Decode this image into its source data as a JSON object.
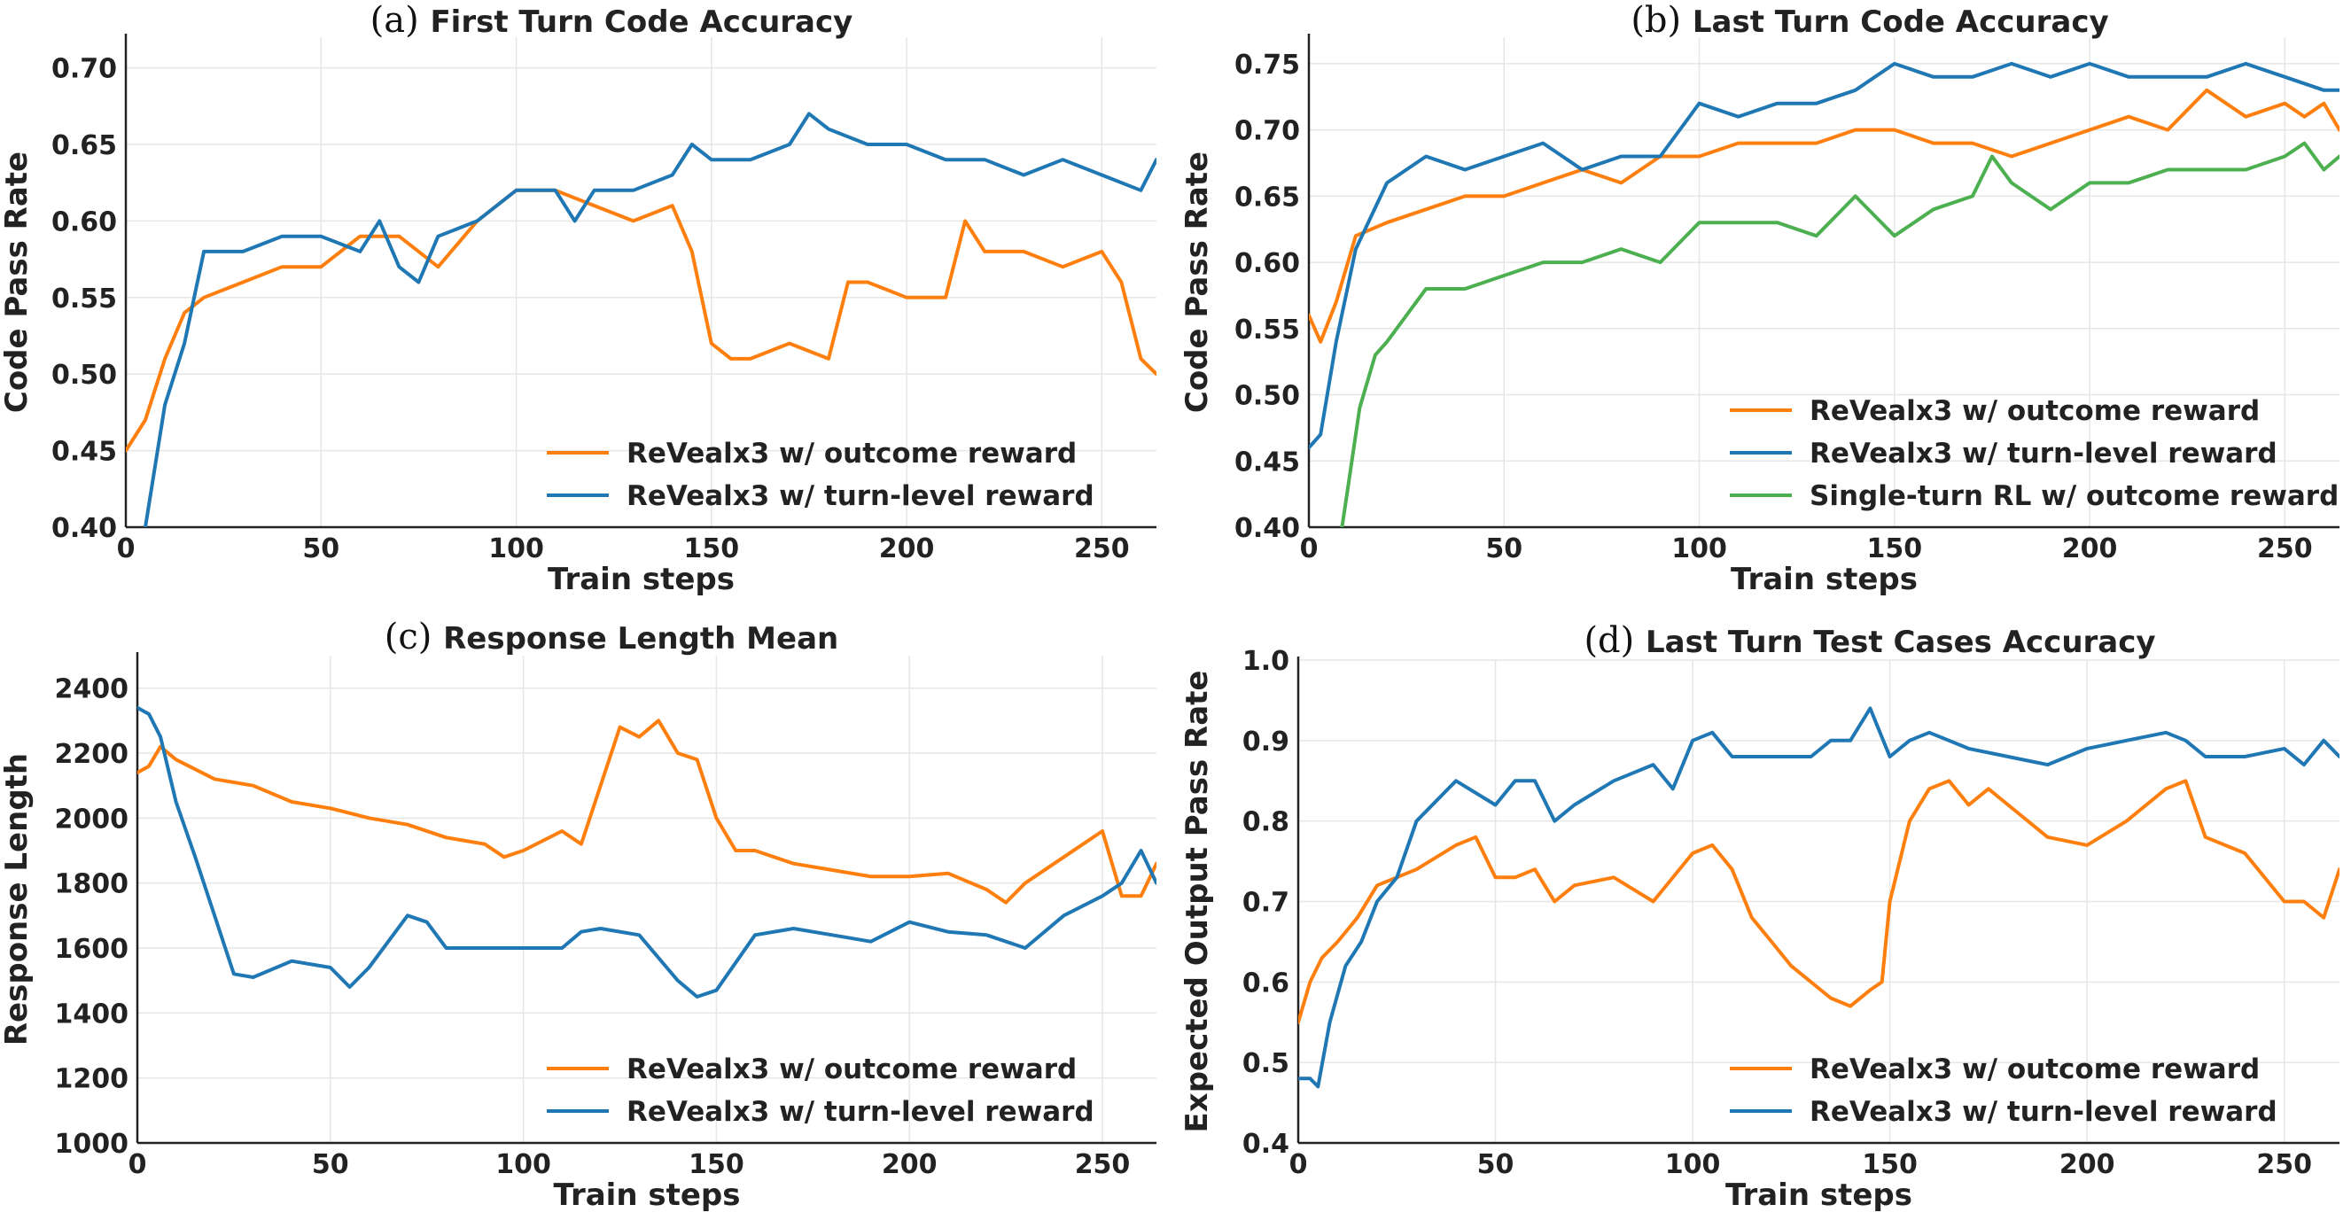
{
  "figure": {
    "colors": {
      "orange": "#ff7f0e",
      "blue": "#1f77b4",
      "green": "#4caf50"
    }
  },
  "chart_data": [
    {
      "panel_letter": "(a)",
      "title": "First Turn Code Accuracy",
      "type": "line",
      "xlabel": "Train steps",
      "ylabel": "Code Pass Rate",
      "xlim": [
        0,
        264
      ],
      "ylim": [
        0.4,
        0.72
      ],
      "xticks": [
        0,
        50,
        100,
        150,
        200,
        250
      ],
      "yticks": [
        0.4,
        0.45,
        0.5,
        0.55,
        0.6,
        0.65,
        0.7
      ],
      "ytick_labels": [
        "0.40",
        "0.45",
        "0.50",
        "0.55",
        "0.60",
        "0.65",
        "0.70"
      ],
      "grid": true,
      "legend_position": "lower-right",
      "series": [
        {
          "name": "ReVealx3 w/ outcome reward",
          "color": "#ff7f0e",
          "x": [
            0,
            5,
            10,
            15,
            20,
            30,
            40,
            50,
            60,
            70,
            80,
            90,
            100,
            110,
            120,
            130,
            140,
            145,
            150,
            155,
            160,
            170,
            180,
            185,
            190,
            200,
            210,
            215,
            220,
            230,
            240,
            250,
            255,
            260,
            264
          ],
          "y": [
            0.45,
            0.47,
            0.51,
            0.54,
            0.55,
            0.56,
            0.57,
            0.57,
            0.59,
            0.59,
            0.57,
            0.6,
            0.62,
            0.62,
            0.61,
            0.6,
            0.61,
            0.58,
            0.52,
            0.51,
            0.51,
            0.52,
            0.51,
            0.56,
            0.56,
            0.55,
            0.55,
            0.6,
            0.58,
            0.58,
            0.57,
            0.58,
            0.56,
            0.51,
            0.5
          ]
        },
        {
          "name": "ReVealx3 w/ turn-level reward",
          "color": "#1f77b4",
          "x": [
            0,
            5,
            10,
            15,
            20,
            30,
            40,
            50,
            60,
            65,
            70,
            75,
            80,
            90,
            100,
            110,
            115,
            120,
            130,
            140,
            145,
            150,
            160,
            170,
            175,
            180,
            190,
            200,
            210,
            220,
            230,
            240,
            250,
            260,
            264
          ],
          "y": [
            0.37,
            0.4,
            0.48,
            0.52,
            0.58,
            0.58,
            0.59,
            0.59,
            0.58,
            0.6,
            0.57,
            0.56,
            0.59,
            0.6,
            0.62,
            0.62,
            0.6,
            0.62,
            0.62,
            0.63,
            0.65,
            0.64,
            0.64,
            0.65,
            0.67,
            0.66,
            0.65,
            0.65,
            0.64,
            0.64,
            0.63,
            0.64,
            0.63,
            0.62,
            0.64
          ]
        }
      ]
    },
    {
      "panel_letter": "(b)",
      "title": "Last Turn Code Accuracy",
      "type": "line",
      "xlabel": "Train steps",
      "ylabel": "Code Pass Rate",
      "xlim": [
        0,
        264
      ],
      "ylim": [
        0.4,
        0.77
      ],
      "xticks": [
        0,
        50,
        100,
        150,
        200,
        250
      ],
      "yticks": [
        0.4,
        0.45,
        0.5,
        0.55,
        0.6,
        0.65,
        0.7,
        0.75
      ],
      "ytick_labels": [
        "0.40",
        "0.45",
        "0.50",
        "0.55",
        "0.60",
        "0.65",
        "0.70",
        "0.75"
      ],
      "grid": true,
      "legend_position": "lower-right",
      "series": [
        {
          "name": "ReVealx3 w/ outcome reward",
          "color": "#ff7f0e",
          "x": [
            0,
            3,
            7,
            12,
            20,
            30,
            40,
            50,
            60,
            70,
            80,
            90,
            100,
            110,
            120,
            130,
            140,
            150,
            160,
            170,
            180,
            190,
            200,
            210,
            220,
            230,
            240,
            250,
            255,
            260,
            264
          ],
          "y": [
            0.56,
            0.54,
            0.57,
            0.62,
            0.63,
            0.64,
            0.65,
            0.65,
            0.66,
            0.67,
            0.66,
            0.68,
            0.68,
            0.69,
            0.69,
            0.69,
            0.7,
            0.7,
            0.69,
            0.69,
            0.68,
            0.69,
            0.7,
            0.71,
            0.7,
            0.73,
            0.71,
            0.72,
            0.71,
            0.72,
            0.7
          ]
        },
        {
          "name": "ReVealx3 w/ turn-level reward",
          "color": "#1f77b4",
          "x": [
            0,
            3,
            7,
            12,
            20,
            30,
            40,
            50,
            60,
            70,
            80,
            90,
            100,
            110,
            120,
            130,
            140,
            150,
            160,
            170,
            180,
            190,
            200,
            210,
            220,
            230,
            240,
            250,
            260,
            264
          ],
          "y": [
            0.46,
            0.47,
            0.54,
            0.61,
            0.66,
            0.68,
            0.67,
            0.68,
            0.69,
            0.67,
            0.68,
            0.68,
            0.72,
            0.71,
            0.72,
            0.72,
            0.73,
            0.75,
            0.74,
            0.74,
            0.75,
            0.74,
            0.75,
            0.74,
            0.74,
            0.74,
            0.75,
            0.74,
            0.73,
            0.73
          ]
        },
        {
          "name": "Single-turn RL w/ outcome reward",
          "color": "#4caf50",
          "x": [
            8,
            10,
            13,
            17,
            20,
            25,
            30,
            40,
            50,
            60,
            70,
            80,
            90,
            100,
            110,
            120,
            130,
            140,
            150,
            160,
            170,
            175,
            180,
            185,
            190,
            200,
            210,
            220,
            230,
            240,
            250,
            255,
            260,
            264
          ],
          "y": [
            0.39,
            0.43,
            0.49,
            0.53,
            0.54,
            0.56,
            0.58,
            0.58,
            0.59,
            0.6,
            0.6,
            0.61,
            0.6,
            0.63,
            0.63,
            0.63,
            0.62,
            0.65,
            0.62,
            0.64,
            0.65,
            0.68,
            0.66,
            0.65,
            0.64,
            0.66,
            0.66,
            0.67,
            0.67,
            0.67,
            0.68,
            0.69,
            0.67,
            0.68
          ]
        }
      ]
    },
    {
      "panel_letter": "(c)",
      "title": "Response Length Mean",
      "type": "line",
      "xlabel": "Train steps",
      "ylabel": "Response Length",
      "xlim": [
        0,
        264
      ],
      "ylim": [
        1000,
        2500
      ],
      "xticks": [
        0,
        50,
        100,
        150,
        200,
        250
      ],
      "yticks": [
        1000,
        1200,
        1400,
        1600,
        1800,
        2000,
        2200,
        2400
      ],
      "ytick_labels": [
        "1000",
        "1200",
        "1400",
        "1600",
        "1800",
        "2000",
        "2200",
        "2400"
      ],
      "grid": true,
      "legend_position": "lower-right",
      "series": [
        {
          "name": "ReVealx3 w/ outcome reward",
          "color": "#ff7f0e",
          "x": [
            0,
            3,
            6,
            10,
            20,
            30,
            40,
            50,
            60,
            70,
            80,
            90,
            95,
            100,
            110,
            115,
            120,
            125,
            130,
            135,
            140,
            145,
            150,
            155,
            160,
            170,
            180,
            190,
            200,
            210,
            220,
            225,
            230,
            240,
            245,
            250,
            255,
            260,
            264
          ],
          "y": [
            2140,
            2160,
            2220,
            2180,
            2120,
            2100,
            2050,
            2030,
            2000,
            1980,
            1940,
            1920,
            1880,
            1900,
            1960,
            1920,
            2100,
            2280,
            2250,
            2300,
            2200,
            2180,
            2000,
            1900,
            1900,
            1860,
            1840,
            1820,
            1820,
            1830,
            1780,
            1740,
            1800,
            1880,
            1920,
            1960,
            1760,
            1760,
            1860
          ]
        },
        {
          "name": "ReVealx3 w/ turn-level reward",
          "color": "#1f77b4",
          "x": [
            0,
            3,
            6,
            10,
            15,
            20,
            25,
            30,
            40,
            50,
            55,
            60,
            70,
            75,
            80,
            90,
            100,
            110,
            115,
            120,
            130,
            140,
            145,
            150,
            160,
            170,
            180,
            190,
            200,
            210,
            220,
            230,
            240,
            250,
            255,
            260,
            264
          ],
          "y": [
            2340,
            2320,
            2250,
            2050,
            1880,
            1700,
            1520,
            1510,
            1560,
            1540,
            1480,
            1540,
            1700,
            1680,
            1600,
            1600,
            1600,
            1600,
            1650,
            1660,
            1640,
            1500,
            1450,
            1470,
            1640,
            1660,
            1640,
            1620,
            1680,
            1650,
            1640,
            1600,
            1700,
            1760,
            1800,
            1900,
            1800
          ]
        }
      ]
    },
    {
      "panel_letter": "(d)",
      "title": "Last Turn Test Cases Accuracy",
      "type": "line",
      "xlabel": "Train steps",
      "ylabel": "Expected Output Pass Rate",
      "xlim": [
        0,
        264
      ],
      "ylim": [
        0.4,
        1.0
      ],
      "xticks": [
        0,
        50,
        100,
        150,
        200,
        250
      ],
      "yticks": [
        0.4,
        0.5,
        0.6,
        0.7,
        0.8,
        0.9,
        1.0
      ],
      "ytick_labels": [
        "0.4",
        "0.5",
        "0.6",
        "0.7",
        "0.8",
        "0.9",
        "1.0"
      ],
      "grid": true,
      "legend_position": "lower-right",
      "series": [
        {
          "name": "ReVealx3 w/ outcome reward",
          "color": "#ff7f0e",
          "x": [
            0,
            3,
            6,
            10,
            15,
            20,
            30,
            40,
            45,
            50,
            55,
            60,
            65,
            70,
            80,
            90,
            100,
            105,
            110,
            115,
            120,
            125,
            130,
            135,
            140,
            145,
            148,
            150,
            155,
            160,
            165,
            170,
            175,
            180,
            190,
            200,
            210,
            220,
            225,
            230,
            240,
            250,
            255,
            260,
            264
          ],
          "y": [
            0.55,
            0.6,
            0.63,
            0.65,
            0.68,
            0.72,
            0.74,
            0.77,
            0.78,
            0.73,
            0.73,
            0.74,
            0.7,
            0.72,
            0.73,
            0.7,
            0.76,
            0.77,
            0.74,
            0.68,
            0.65,
            0.62,
            0.6,
            0.58,
            0.57,
            0.59,
            0.6,
            0.7,
            0.8,
            0.84,
            0.85,
            0.82,
            0.84,
            0.82,
            0.78,
            0.77,
            0.8,
            0.84,
            0.85,
            0.78,
            0.76,
            0.7,
            0.7,
            0.68,
            0.74
          ]
        },
        {
          "name": "ReVealx3 w/ turn-level reward",
          "color": "#1f77b4",
          "x": [
            0,
            3,
            5,
            8,
            12,
            16,
            20,
            25,
            30,
            40,
            50,
            55,
            60,
            65,
            70,
            80,
            90,
            95,
            100,
            105,
            110,
            120,
            130,
            135,
            140,
            145,
            150,
            155,
            160,
            170,
            180,
            190,
            200,
            210,
            220,
            225,
            230,
            240,
            250,
            255,
            260,
            264
          ],
          "y": [
            0.48,
            0.48,
            0.47,
            0.55,
            0.62,
            0.65,
            0.7,
            0.73,
            0.8,
            0.85,
            0.82,
            0.85,
            0.85,
            0.8,
            0.82,
            0.85,
            0.87,
            0.84,
            0.9,
            0.91,
            0.88,
            0.88,
            0.88,
            0.9,
            0.9,
            0.94,
            0.88,
            0.9,
            0.91,
            0.89,
            0.88,
            0.87,
            0.89,
            0.9,
            0.91,
            0.9,
            0.88,
            0.88,
            0.89,
            0.87,
            0.9,
            0.88
          ]
        }
      ]
    }
  ]
}
